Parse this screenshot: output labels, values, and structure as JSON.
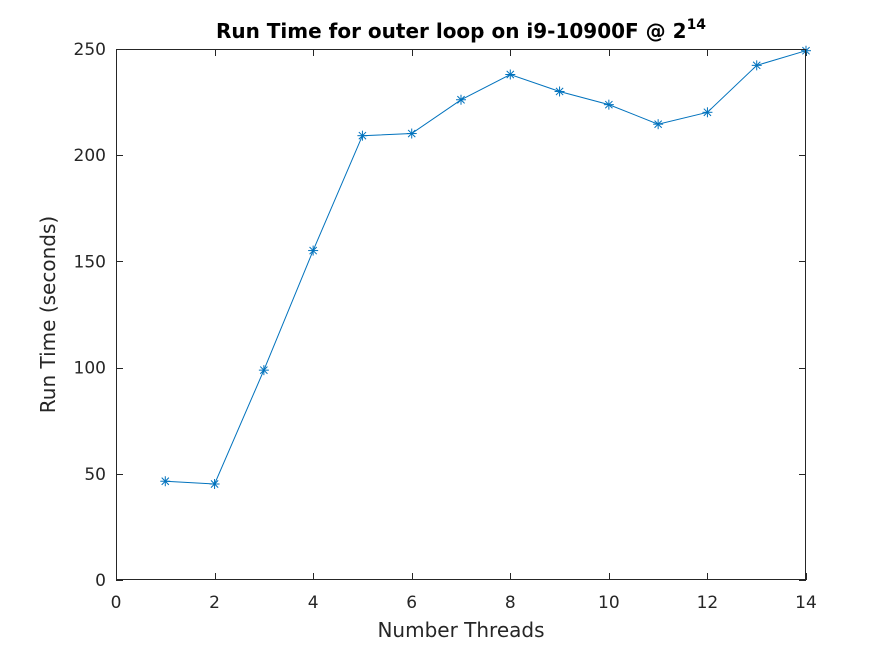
{
  "chart_data": {
    "type": "line",
    "title": {
      "text": "Run Time for outer loop on i9-10900F @ 2",
      "superscript": "14"
    },
    "xlabel": "Number Threads",
    "ylabel": "Run Time (seconds)",
    "xlim": [
      0,
      14
    ],
    "ylim": [
      0,
      250
    ],
    "xticks": [
      0,
      2,
      4,
      6,
      8,
      10,
      12,
      14
    ],
    "yticks": [
      0,
      50,
      100,
      150,
      200,
      250
    ],
    "grid": false,
    "marker": "asterisk",
    "color": "#0072BD",
    "series": [
      {
        "x": [
          1,
          2,
          3,
          4,
          5,
          6,
          7,
          8,
          9,
          10,
          11,
          12,
          13,
          14
        ],
        "values": [
          46.5,
          45.2,
          98.8,
          155.1,
          209.2,
          210.2,
          226.1,
          238.0,
          230.0,
          223.8,
          214.6,
          220.2,
          242.3,
          249.2
        ]
      }
    ]
  }
}
